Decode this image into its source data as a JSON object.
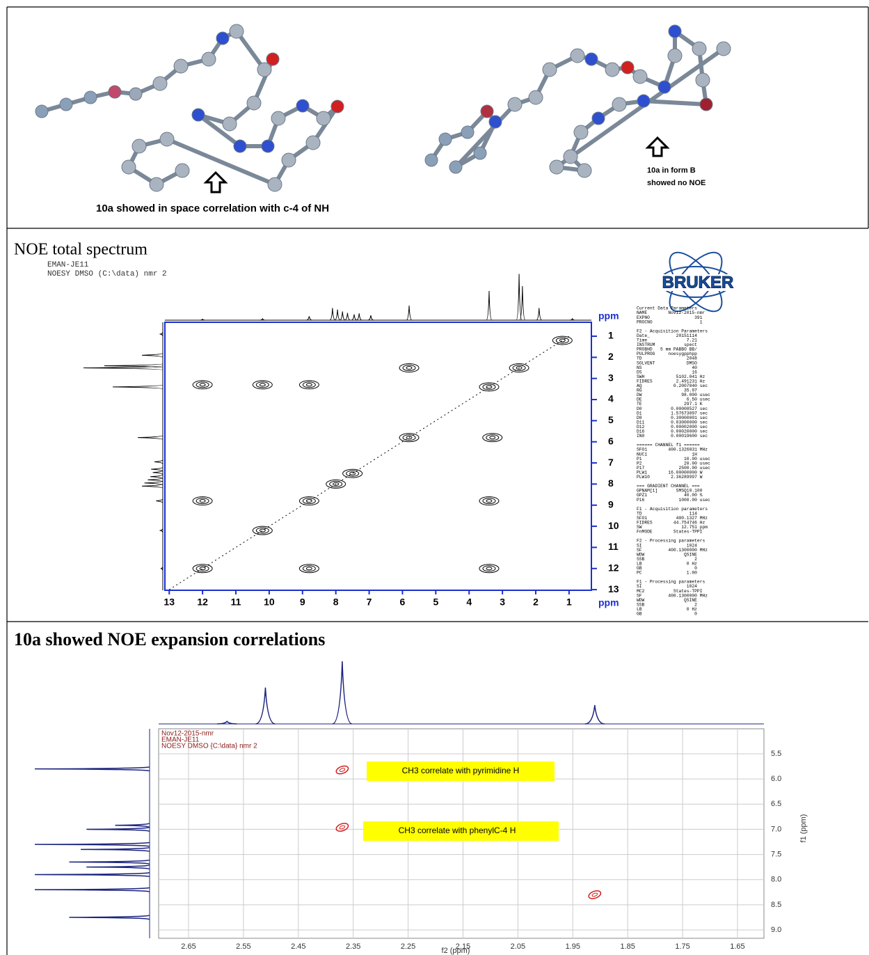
{
  "panel1": {
    "caption_left": "10a showed in space correlation with c-4 of NH",
    "caption_right": [
      "10a  in form B",
      "showed no NOE"
    ]
  },
  "panel2": {
    "title": "NOE total spectrum",
    "header": [
      "EMAN-JE11",
      "NOESY DMSO (C:\\data) nmr 2"
    ],
    "logo": "BRUKER",
    "chart_data": {
      "type": "noesy",
      "x_unit": "ppm",
      "y_unit": "ppm",
      "xlim": [
        13.13,
        0.33
      ],
      "ylim": [
        0.34,
        13.03
      ],
      "xticks": [
        13,
        12,
        11,
        10,
        9,
        8,
        7,
        6,
        5,
        4,
        3,
        2,
        1
      ],
      "yticks": [
        1,
        2,
        3,
        4,
        5,
        6,
        7,
        8,
        9,
        10,
        11,
        12,
        13
      ],
      "projection_peaks": [
        [
          12.0,
          2
        ],
        [
          10.2,
          3
        ],
        [
          8.8,
          8
        ],
        [
          8.1,
          25
        ],
        [
          7.95,
          22
        ],
        [
          7.8,
          18
        ],
        [
          7.65,
          15
        ],
        [
          7.45,
          12
        ],
        [
          7.3,
          14
        ],
        [
          6.95,
          10
        ],
        [
          5.8,
          30
        ],
        [
          3.4,
          60
        ],
        [
          2.5,
          95
        ],
        [
          2.4,
          70
        ],
        [
          1.9,
          25
        ],
        [
          0.9,
          3
        ]
      ],
      "cross_peaks": [
        [
          12.0,
          3.3
        ],
        [
          10.2,
          3.3
        ],
        [
          8.8,
          3.3
        ],
        [
          3.4,
          3.4
        ],
        [
          2.5,
          2.5
        ],
        [
          1.2,
          1.2
        ],
        [
          5.8,
          2.5
        ],
        [
          5.8,
          5.8
        ],
        [
          3.3,
          5.8
        ],
        [
          8.8,
          8.8
        ],
        [
          8.0,
          8.0
        ],
        [
          7.5,
          7.5
        ],
        [
          10.2,
          10.2
        ],
        [
          3.4,
          8.8
        ],
        [
          12.0,
          8.8
        ],
        [
          12.0,
          12.0
        ],
        [
          8.8,
          12.0
        ],
        [
          3.4,
          12.0
        ]
      ]
    },
    "params": [
      "Current Data Parameters",
      "NAME        Nov12-2015-nmr",
      "EXPNO                 391",
      "PROCNO                  1",
      "",
      "F2 - Acquisition Parameters",
      "Date_          20151114",
      "Time               7.21",
      "INSTRUM           spect",
      "PROBHD   5 mm PABBO BB/",
      "PULPROG     noesygpphpp",
      "TD                 2048",
      "SOLVENT            DMSO",
      "NS                   40",
      "DS                   16",
      "SWH            5102.041 Hz",
      "FIDRES         2.491231 Hz",
      "AQ            0.2007040 sec",
      "RG                35.97",
      "DW               98.000 usec",
      "DE                 6.50 usec",
      "TE                297.1 K",
      "D0           0.00008527 sec",
      "D1           1.57673097 sec",
      "D8           0.30000001 sec",
      "D11          0.03000000 sec",
      "D12          0.00002000 sec",
      "D16          0.00020000 sec",
      "IN0          0.00019600 sec",
      "",
      "====== CHANNEL f1 ======",
      "SFO1        400.1326831 MHz",
      "NUC1                 1H",
      "P1                10.00 usec",
      "P2                20.00 usec",
      "P17             2500.00 usec",
      "PLW1        16.00000000 W",
      "PLW10        2.36289997 W",
      "",
      "=== GRADIENT CHANNEL ===",
      "GPNAM[1]       SMSQ10.100",
      "GPZ1              40.00 %",
      "P16             1000.00 usec",
      "",
      "F1 - Acquisition parameters",
      "TD                  114",
      "SFO1           400.1327 MHz",
      "FIDRES        44.754746 Hz",
      "SW               12.751 ppm",
      "FnMODE        States-TPPI",
      "",
      "F2 - Processing parameters",
      "SI                 1024",
      "SF          400.1300000 MHz",
      "WDW               QSINE",
      "SSB                   2",
      "LB                 0 Hz",
      "GB                    0",
      "PC                 1.00",
      "",
      "F1 - Processing parameters",
      "SI                 1024",
      "MC2           States-TPPI",
      "SF          400.1300000 MHz",
      "WDW               QSINE",
      "SSB                   2",
      "LB                 0 Hz",
      "GB                    0"
    ]
  },
  "panel3": {
    "title": "10a showed NOE expansion correlations",
    "header": [
      "Nov12-2015-nmr",
      "EMAN-JE11",
      "NOESY DMSO {C:\\data} nmr 2"
    ],
    "annotations": [
      "CH3 correlate with pyrimidine H",
      "CH3 correlate with phenylC-4 H"
    ],
    "chart_data": {
      "type": "noesy",
      "x_label": "f2 (ppm)",
      "y_label": "f1 (ppm)",
      "xlim": [
        2.7045,
        1.6018
      ],
      "ylim": [
        5.002,
        9.166
      ],
      "xticks": [
        2.65,
        2.55,
        2.45,
        2.35,
        2.25,
        2.15,
        2.05,
        1.95,
        1.85,
        1.75,
        1.65
      ],
      "yticks": [
        5.5,
        {
          "value": 6,
          "label": "6.0"
        },
        6.5,
        {
          "value": 7,
          "label": "7.0"
        },
        7.5,
        {
          "value": 8,
          "label": "8.0"
        },
        8.5,
        {
          "value": 9,
          "label": "9.0"
        }
      ],
      "top_projection_peaks": [
        [
          2.58,
          4
        ],
        [
          2.51,
          58
        ],
        [
          2.37,
          100
        ],
        [
          1.91,
          30
        ]
      ],
      "left_projection_peaks": [
        [
          5.8,
          100
        ],
        [
          6.92,
          30
        ],
        [
          7.0,
          55
        ],
        [
          7.3,
          100
        ],
        [
          7.4,
          60
        ],
        [
          7.65,
          70
        ],
        [
          7.75,
          55
        ],
        [
          7.9,
          100
        ],
        [
          8.2,
          100
        ],
        [
          8.75,
          70
        ]
      ],
      "cross_peaks": [
        [
          2.37,
          5.82
        ],
        [
          2.37,
          6.96
        ],
        [
          1.91,
          8.3
        ]
      ]
    }
  }
}
